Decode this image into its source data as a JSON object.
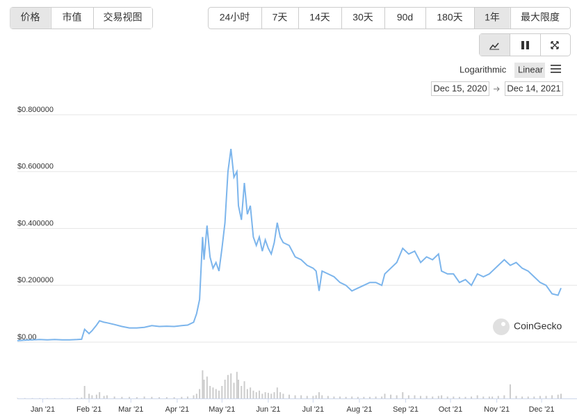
{
  "ui": {
    "tabs": [
      "价格",
      "市值",
      "交易视图"
    ],
    "active_tab": 0,
    "ranges": [
      "24小时",
      "7天",
      "14天",
      "30天",
      "90d",
      "180天",
      "1年",
      "最大限度"
    ],
    "active_range": 6,
    "scale_options": [
      "Logarithmic",
      "Linear"
    ],
    "active_scale": 1,
    "date_from": "Dec 15, 2020",
    "date_to": "Dec 14, 2021",
    "watermark": "CoinGecko"
  },
  "chart_data": {
    "type": "line",
    "color": "#7cb5ec",
    "volume_color": "#cccccc",
    "grid": true,
    "x": [
      0,
      5,
      10,
      15,
      20,
      25,
      30,
      35,
      40,
      43,
      45,
      48,
      50,
      53,
      55,
      58,
      60,
      65,
      70,
      75,
      80,
      85,
      90,
      95,
      100,
      105,
      110,
      114,
      118,
      120,
      122,
      124,
      125,
      127,
      129,
      131,
      133,
      135,
      137,
      139,
      141,
      143,
      145,
      147,
      148,
      150,
      152,
      154,
      156,
      158,
      160,
      162,
      164,
      166,
      168,
      170,
      172,
      174,
      176,
      178,
      182,
      186,
      190,
      194,
      198,
      200,
      202,
      204,
      208,
      212,
      216,
      220,
      224,
      228,
      232,
      236,
      240,
      244,
      246,
      250,
      254,
      258,
      262,
      266,
      270,
      274,
      278,
      282,
      284,
      288,
      292,
      296,
      300,
      304,
      308,
      312,
      316,
      318,
      322,
      326,
      330,
      334,
      338,
      342,
      346,
      350,
      354,
      358,
      362,
      364
    ],
    "values": [
      0.005,
      0.007,
      0.008,
      0.009,
      0.008,
      0.009,
      0.008,
      0.008,
      0.009,
      0.01,
      0.045,
      0.03,
      0.04,
      0.06,
      0.075,
      0.07,
      0.068,
      0.062,
      0.055,
      0.05,
      0.05,
      0.052,
      0.058,
      0.055,
      0.056,
      0.055,
      0.058,
      0.06,
      0.07,
      0.1,
      0.15,
      0.37,
      0.29,
      0.41,
      0.3,
      0.26,
      0.28,
      0.25,
      0.33,
      0.42,
      0.6,
      0.68,
      0.58,
      0.6,
      0.48,
      0.43,
      0.56,
      0.45,
      0.48,
      0.37,
      0.34,
      0.37,
      0.32,
      0.36,
      0.33,
      0.31,
      0.35,
      0.42,
      0.37,
      0.35,
      0.34,
      0.3,
      0.29,
      0.27,
      0.26,
      0.25,
      0.18,
      0.25,
      0.24,
      0.23,
      0.21,
      0.2,
      0.18,
      0.19,
      0.2,
      0.21,
      0.21,
      0.2,
      0.24,
      0.26,
      0.28,
      0.33,
      0.31,
      0.32,
      0.28,
      0.3,
      0.29,
      0.31,
      0.25,
      0.24,
      0.24,
      0.21,
      0.22,
      0.2,
      0.24,
      0.23,
      0.24,
      0.25,
      0.27,
      0.29,
      0.27,
      0.28,
      0.26,
      0.25,
      0.23,
      0.21,
      0.2,
      0.17,
      0.165,
      0.19
    ],
    "volume": [
      1,
      1,
      1,
      1,
      1,
      1,
      1,
      1,
      2,
      3,
      40,
      15,
      10,
      12,
      20,
      8,
      10,
      6,
      5,
      5,
      4,
      6,
      5,
      4,
      4,
      4,
      5,
      6,
      10,
      15,
      30,
      90,
      60,
      70,
      40,
      35,
      30,
      25,
      40,
      60,
      75,
      80,
      50,
      85,
      60,
      40,
      55,
      30,
      35,
      25,
      20,
      25,
      15,
      20,
      18,
      15,
      20,
      35,
      20,
      15,
      12,
      10,
      10,
      8,
      8,
      10,
      20,
      10,
      8,
      6,
      6,
      5,
      6,
      5,
      5,
      5,
      6,
      6,
      15,
      12,
      10,
      20,
      10,
      10,
      8,
      8,
      6,
      8,
      10,
      6,
      6,
      5,
      5,
      6,
      10,
      6,
      6,
      6,
      8,
      10,
      45,
      8,
      6,
      6,
      6,
      8,
      8,
      10,
      12,
      15
    ],
    "volume_lim": [
      0,
      100
    ],
    "xlim": [
      0,
      364
    ],
    "xticks": [
      {
        "value": 17,
        "label": "Jan '21"
      },
      {
        "value": 48,
        "label": "Feb '21"
      },
      {
        "value": 76,
        "label": "Mar '21"
      },
      {
        "value": 107,
        "label": "Apr '21"
      },
      {
        "value": 137,
        "label": "May '21"
      },
      {
        "value": 168,
        "label": "Jun '21"
      },
      {
        "value": 198,
        "label": "Jul '21"
      },
      {
        "value": 229,
        "label": "Aug '21"
      },
      {
        "value": 260,
        "label": "Sep '21"
      },
      {
        "value": 290,
        "label": "Oct '21"
      },
      {
        "value": 321,
        "label": "Nov '21"
      },
      {
        "value": 351,
        "label": "Dec '21"
      }
    ],
    "ylim": [
      0,
      0.8
    ],
    "yticks": [
      {
        "value": 0,
        "label": "$0.00"
      },
      {
        "value": 0.2,
        "label": "$0.200000"
      },
      {
        "value": 0.4,
        "label": "$0.400000"
      },
      {
        "value": 0.6,
        "label": "$0.600000"
      },
      {
        "value": 0.8,
        "label": "$0.800000"
      }
    ]
  }
}
